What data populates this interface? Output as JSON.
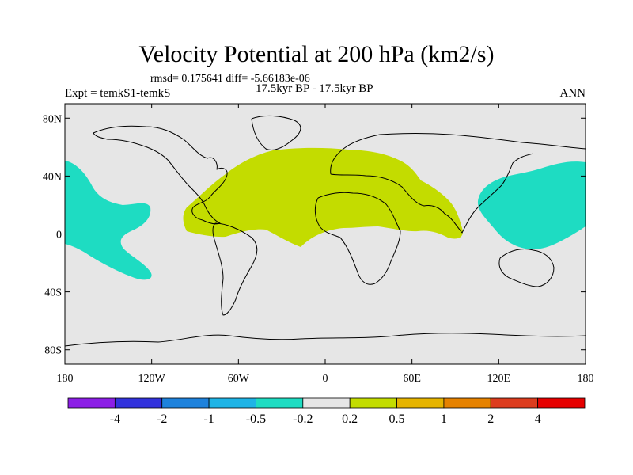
{
  "title": "Velocity Potential at 200 hPa (km2/s)",
  "stats": "rmsd= 0.175641 diff= -5.66183e-06",
  "experiment": "Expt = temkS1-temkS",
  "period": "17.5kyr BP - 17.5kyr BP",
  "season": "ANN",
  "map": {
    "projection": "cylindrical-equidistant",
    "lon_range": [
      -180,
      180
    ],
    "lat_range": [
      -90,
      90
    ],
    "background_color": "#e6e6e6",
    "coastline_color": "#000000",
    "lat_ticks": [
      {
        "value": 80,
        "label": "80N"
      },
      {
        "value": 40,
        "label": "40N"
      },
      {
        "value": 0,
        "label": "0"
      },
      {
        "value": -40,
        "label": "40S"
      },
      {
        "value": -80,
        "label": "80S"
      }
    ],
    "lon_ticks": [
      {
        "value": -180,
        "label": "180"
      },
      {
        "value": -120,
        "label": "120W"
      },
      {
        "value": -60,
        "label": "60W"
      },
      {
        "value": 0,
        "label": "0"
      },
      {
        "value": 60,
        "label": "60E"
      },
      {
        "value": 120,
        "label": "120E"
      },
      {
        "value": 180,
        "label": "180"
      }
    ],
    "anomaly_regions": [
      {
        "name": "central-pacific-negative",
        "range": "-0.5 to -0.2",
        "color": "#1edcc2"
      },
      {
        "name": "atlantic-africa-positive",
        "range": "0.2 to 0.5",
        "color": "#c3dc00"
      },
      {
        "name": "west-pacific-negative",
        "range": "-0.5 to -0.2",
        "color": "#1edcc2"
      }
    ]
  },
  "colorbar": {
    "boundaries": [
      "-4",
      "-2",
      "-1",
      "-0.5",
      "-0.2",
      "0.2",
      "0.5",
      "1",
      "2",
      "4"
    ],
    "colors": [
      "#8c1ee6",
      "#3232dc",
      "#1e82dc",
      "#1eb4e6",
      "#1edcc2",
      "#e6e6e6",
      "#c3dc00",
      "#e6b400",
      "#e68200",
      "#dc3c1e",
      "#e60000"
    ]
  }
}
